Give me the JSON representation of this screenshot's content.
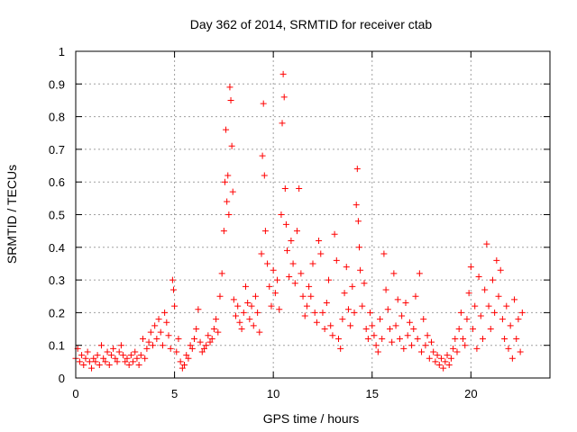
{
  "chart_data": {
    "type": "scatter",
    "title": "Day 362 of 2014, SRMTID for receiver ctab",
    "xlabel": "GPS time / hours",
    "ylabel": "SRMTID / TECUs",
    "xlim": [
      0,
      24
    ],
    "ylim": [
      0,
      1
    ],
    "xticks": [
      0,
      5,
      10,
      15,
      20
    ],
    "xtick_labels": [
      "0",
      "5",
      "10",
      "15",
      "20"
    ],
    "yticks": [
      0,
      0.1,
      0.2,
      0.3,
      0.4,
      0.5,
      0.6,
      0.7,
      0.8,
      0.9,
      1
    ],
    "ytick_labels": [
      "0",
      "0.1",
      "0.2",
      "0.3",
      "0.4",
      "0.5",
      "0.6",
      "0.7",
      "0.8",
      "0.9",
      "1"
    ],
    "grid": true,
    "marker": "+",
    "color": "#ff0000",
    "series": [
      {
        "name": "SRMTID",
        "points": [
          [
            0.0,
            0.06
          ],
          [
            0.1,
            0.09
          ],
          [
            0.2,
            0.05
          ],
          [
            0.3,
            0.07
          ],
          [
            0.4,
            0.04
          ],
          [
            0.5,
            0.06
          ],
          [
            0.6,
            0.08
          ],
          [
            0.7,
            0.05
          ],
          [
            0.8,
            0.03
          ],
          [
            0.9,
            0.06
          ],
          [
            1.0,
            0.05
          ],
          [
            1.1,
            0.07
          ],
          [
            1.2,
            0.04
          ],
          [
            1.3,
            0.1
          ],
          [
            1.4,
            0.06
          ],
          [
            1.5,
            0.05
          ],
          [
            1.6,
            0.08
          ],
          [
            1.7,
            0.04
          ],
          [
            1.8,
            0.07
          ],
          [
            1.9,
            0.09
          ],
          [
            2.0,
            0.06
          ],
          [
            2.1,
            0.05
          ],
          [
            2.2,
            0.08
          ],
          [
            2.3,
            0.1
          ],
          [
            2.4,
            0.07
          ],
          [
            2.5,
            0.05
          ],
          [
            2.6,
            0.06
          ],
          [
            2.7,
            0.04
          ],
          [
            2.8,
            0.07
          ],
          [
            2.9,
            0.05
          ],
          [
            3.0,
            0.08
          ],
          [
            3.1,
            0.06
          ],
          [
            3.2,
            0.04
          ],
          [
            3.3,
            0.07
          ],
          [
            3.4,
            0.12
          ],
          [
            3.5,
            0.06
          ],
          [
            3.6,
            0.09
          ],
          [
            3.7,
            0.11
          ],
          [
            3.8,
            0.14
          ],
          [
            3.9,
            0.1
          ],
          [
            4.0,
            0.16
          ],
          [
            4.1,
            0.12
          ],
          [
            4.2,
            0.18
          ],
          [
            4.3,
            0.14
          ],
          [
            4.4,
            0.1
          ],
          [
            4.5,
            0.2
          ],
          [
            4.6,
            0.17
          ],
          [
            4.7,
            0.13
          ],
          [
            4.8,
            0.09
          ],
          [
            4.9,
            0.3
          ],
          [
            4.95,
            0.27
          ],
          [
            5.0,
            0.22
          ],
          [
            5.1,
            0.08
          ],
          [
            5.2,
            0.12
          ],
          [
            5.3,
            0.05
          ],
          [
            5.4,
            0.03
          ],
          [
            5.5,
            0.04
          ],
          [
            5.6,
            0.07
          ],
          [
            5.7,
            0.06
          ],
          [
            5.8,
            0.1
          ],
          [
            5.9,
            0.09
          ],
          [
            6.0,
            0.12
          ],
          [
            6.1,
            0.15
          ],
          [
            6.2,
            0.21
          ],
          [
            6.3,
            0.11
          ],
          [
            6.4,
            0.08
          ],
          [
            6.5,
            0.09
          ],
          [
            6.6,
            0.1
          ],
          [
            6.7,
            0.13
          ],
          [
            6.8,
            0.11
          ],
          [
            6.9,
            0.12
          ],
          [
            7.0,
            0.15
          ],
          [
            7.1,
            0.18
          ],
          [
            7.2,
            0.14
          ],
          [
            7.3,
            0.25
          ],
          [
            7.4,
            0.32
          ],
          [
            7.5,
            0.45
          ],
          [
            7.55,
            0.6
          ],
          [
            7.6,
            0.76
          ],
          [
            7.65,
            0.54
          ],
          [
            7.7,
            0.62
          ],
          [
            7.75,
            0.5
          ],
          [
            7.8,
            0.89
          ],
          [
            7.85,
            0.85
          ],
          [
            7.9,
            0.71
          ],
          [
            7.95,
            0.57
          ],
          [
            8.0,
            0.24
          ],
          [
            8.1,
            0.19
          ],
          [
            8.2,
            0.22
          ],
          [
            8.3,
            0.17
          ],
          [
            8.4,
            0.15
          ],
          [
            8.5,
            0.2
          ],
          [
            8.6,
            0.28
          ],
          [
            8.7,
            0.23
          ],
          [
            8.8,
            0.18
          ],
          [
            8.9,
            0.22
          ],
          [
            9.0,
            0.16
          ],
          [
            9.1,
            0.25
          ],
          [
            9.2,
            0.2
          ],
          [
            9.3,
            0.14
          ],
          [
            9.4,
            0.38
          ],
          [
            9.45,
            0.68
          ],
          [
            9.5,
            0.84
          ],
          [
            9.55,
            0.62
          ],
          [
            9.6,
            0.45
          ],
          [
            9.7,
            0.35
          ],
          [
            9.8,
            0.28
          ],
          [
            9.9,
            0.22
          ],
          [
            10.0,
            0.33
          ],
          [
            10.1,
            0.26
          ],
          [
            10.2,
            0.3
          ],
          [
            10.3,
            0.21
          ],
          [
            10.4,
            0.5
          ],
          [
            10.45,
            0.78
          ],
          [
            10.5,
            0.93
          ],
          [
            10.55,
            0.86
          ],
          [
            10.6,
            0.58
          ],
          [
            10.65,
            0.47
          ],
          [
            10.7,
            0.39
          ],
          [
            10.8,
            0.31
          ],
          [
            10.9,
            0.42
          ],
          [
            11.0,
            0.35
          ],
          [
            11.1,
            0.29
          ],
          [
            11.2,
            0.45
          ],
          [
            11.3,
            0.58
          ],
          [
            11.4,
            0.32
          ],
          [
            11.5,
            0.25
          ],
          [
            11.6,
            0.19
          ],
          [
            11.7,
            0.22
          ],
          [
            11.8,
            0.28
          ],
          [
            11.9,
            0.25
          ],
          [
            12.0,
            0.35
          ],
          [
            12.1,
            0.2
          ],
          [
            12.2,
            0.17
          ],
          [
            12.3,
            0.42
          ],
          [
            12.4,
            0.38
          ],
          [
            12.5,
            0.2
          ],
          [
            12.6,
            0.15
          ],
          [
            12.7,
            0.23
          ],
          [
            12.8,
            0.3
          ],
          [
            12.9,
            0.16
          ],
          [
            13.0,
            0.13
          ],
          [
            13.1,
            0.44
          ],
          [
            13.2,
            0.36
          ],
          [
            13.3,
            0.12
          ],
          [
            13.4,
            0.09
          ],
          [
            13.5,
            0.18
          ],
          [
            13.6,
            0.26
          ],
          [
            13.7,
            0.34
          ],
          [
            13.8,
            0.21
          ],
          [
            13.9,
            0.16
          ],
          [
            14.0,
            0.28
          ],
          [
            14.1,
            0.2
          ],
          [
            14.2,
            0.53
          ],
          [
            14.25,
            0.64
          ],
          [
            14.3,
            0.48
          ],
          [
            14.35,
            0.4
          ],
          [
            14.4,
            0.33
          ],
          [
            14.5,
            0.22
          ],
          [
            14.6,
            0.29
          ],
          [
            14.7,
            0.15
          ],
          [
            14.8,
            0.12
          ],
          [
            14.9,
            0.2
          ],
          [
            15.0,
            0.16
          ],
          [
            15.1,
            0.13
          ],
          [
            15.2,
            0.1
          ],
          [
            15.3,
            0.08
          ],
          [
            15.4,
            0.18
          ],
          [
            15.5,
            0.12
          ],
          [
            15.6,
            0.38
          ],
          [
            15.7,
            0.27
          ],
          [
            15.8,
            0.21
          ],
          [
            15.9,
            0.15
          ],
          [
            16.0,
            0.11
          ],
          [
            16.1,
            0.32
          ],
          [
            16.2,
            0.16
          ],
          [
            16.3,
            0.24
          ],
          [
            16.4,
            0.12
          ],
          [
            16.5,
            0.19
          ],
          [
            16.6,
            0.09
          ],
          [
            16.7,
            0.23
          ],
          [
            16.8,
            0.13
          ],
          [
            16.9,
            0.17
          ],
          [
            17.0,
            0.1
          ],
          [
            17.1,
            0.15
          ],
          [
            17.2,
            0.25
          ],
          [
            17.3,
            0.12
          ],
          [
            17.4,
            0.32
          ],
          [
            17.5,
            0.08
          ],
          [
            17.6,
            0.18
          ],
          [
            17.7,
            0.1
          ],
          [
            17.8,
            0.13
          ],
          [
            17.9,
            0.06
          ],
          [
            18.0,
            0.11
          ],
          [
            18.1,
            0.08
          ],
          [
            18.2,
            0.05
          ],
          [
            18.3,
            0.07
          ],
          [
            18.4,
            0.04
          ],
          [
            18.5,
            0.06
          ],
          [
            18.6,
            0.03
          ],
          [
            18.7,
            0.05
          ],
          [
            18.8,
            0.07
          ],
          [
            18.9,
            0.04
          ],
          [
            19.0,
            0.06
          ],
          [
            19.1,
            0.09
          ],
          [
            19.2,
            0.12
          ],
          [
            19.3,
            0.08
          ],
          [
            19.4,
            0.15
          ],
          [
            19.5,
            0.2
          ],
          [
            19.6,
            0.12
          ],
          [
            19.7,
            0.1
          ],
          [
            19.8,
            0.18
          ],
          [
            19.9,
            0.26
          ],
          [
            20.0,
            0.34
          ],
          [
            20.1,
            0.15
          ],
          [
            20.2,
            0.22
          ],
          [
            20.3,
            0.09
          ],
          [
            20.4,
            0.31
          ],
          [
            20.5,
            0.19
          ],
          [
            20.6,
            0.12
          ],
          [
            20.7,
            0.27
          ],
          [
            20.8,
            0.41
          ],
          [
            20.9,
            0.22
          ],
          [
            21.0,
            0.15
          ],
          [
            21.1,
            0.3
          ],
          [
            21.2,
            0.2
          ],
          [
            21.3,
            0.36
          ],
          [
            21.4,
            0.25
          ],
          [
            21.5,
            0.33
          ],
          [
            21.6,
            0.18
          ],
          [
            21.7,
            0.12
          ],
          [
            21.8,
            0.22
          ],
          [
            21.9,
            0.09
          ],
          [
            22.0,
            0.16
          ],
          [
            22.1,
            0.06
          ],
          [
            22.2,
            0.24
          ],
          [
            22.3,
            0.12
          ],
          [
            22.4,
            0.18
          ],
          [
            22.5,
            0.08
          ],
          [
            22.6,
            0.2
          ]
        ]
      }
    ]
  }
}
